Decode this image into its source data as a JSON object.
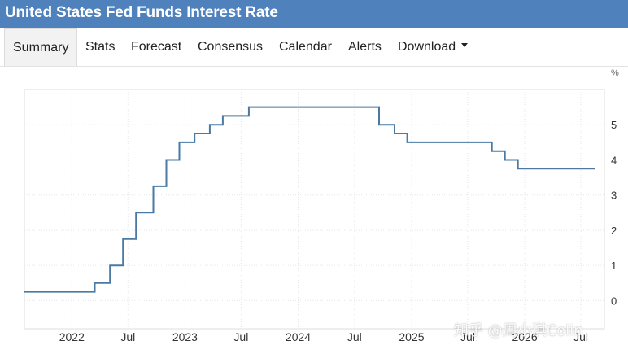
{
  "header": {
    "title": "United States Fed Funds Interest Rate"
  },
  "tabs": [
    {
      "label": "Summary",
      "active": true
    },
    {
      "label": "Stats"
    },
    {
      "label": "Forecast"
    },
    {
      "label": "Consensus"
    },
    {
      "label": "Calendar"
    },
    {
      "label": "Alerts"
    },
    {
      "label": "Download",
      "dropdown": true
    }
  ],
  "watermark": "知乎 @周小淇Colin",
  "colors": {
    "header_bg": "#4f81bd",
    "line": "#4a7aa4",
    "grid": "#e6e6e6"
  },
  "chart_data": {
    "type": "line",
    "step": true,
    "title": "",
    "xlabel": "",
    "ylabel": "%",
    "ylim": [
      -0.8,
      6
    ],
    "xlim": [
      "2021-08-01",
      "2026-09-15"
    ],
    "grid": true,
    "y_ticks": [
      0,
      1,
      2,
      3,
      4,
      5
    ],
    "x_ticks": [
      {
        "date": "2022-01-01",
        "label": "2022"
      },
      {
        "date": "2022-07-01",
        "label": "Jul"
      },
      {
        "date": "2023-01-01",
        "label": "2023"
      },
      {
        "date": "2023-07-01",
        "label": "Jul"
      },
      {
        "date": "2024-01-01",
        "label": "2024"
      },
      {
        "date": "2024-07-01",
        "label": "Jul"
      },
      {
        "date": "2025-01-01",
        "label": "2025"
      },
      {
        "date": "2025-07-01",
        "label": "Jul"
      },
      {
        "date": "2026-01-01",
        "label": "2026"
      },
      {
        "date": "2026-07-01",
        "label": "Jul"
      }
    ],
    "series": [
      {
        "points": [
          {
            "date": "2021-08-01",
            "value": 0.25
          },
          {
            "date": "2022-03-16",
            "value": 0.5
          },
          {
            "date": "2022-05-04",
            "value": 1.0
          },
          {
            "date": "2022-06-15",
            "value": 1.75
          },
          {
            "date": "2022-07-27",
            "value": 2.5
          },
          {
            "date": "2022-09-21",
            "value": 3.25
          },
          {
            "date": "2022-11-02",
            "value": 4.0
          },
          {
            "date": "2022-12-14",
            "value": 4.5
          },
          {
            "date": "2023-02-01",
            "value": 4.75
          },
          {
            "date": "2023-03-22",
            "value": 5.0
          },
          {
            "date": "2023-05-03",
            "value": 5.25
          },
          {
            "date": "2023-07-26",
            "value": 5.5
          },
          {
            "date": "2024-09-18",
            "value": 5.0
          },
          {
            "date": "2024-11-07",
            "value": 4.75
          },
          {
            "date": "2024-12-18",
            "value": 4.5
          },
          {
            "date": "2025-09-17",
            "value": 4.25
          },
          {
            "date": "2025-10-29",
            "value": 4.0
          },
          {
            "date": "2025-12-10",
            "value": 3.75
          },
          {
            "date": "2026-08-15",
            "value": 3.75
          }
        ]
      }
    ]
  }
}
